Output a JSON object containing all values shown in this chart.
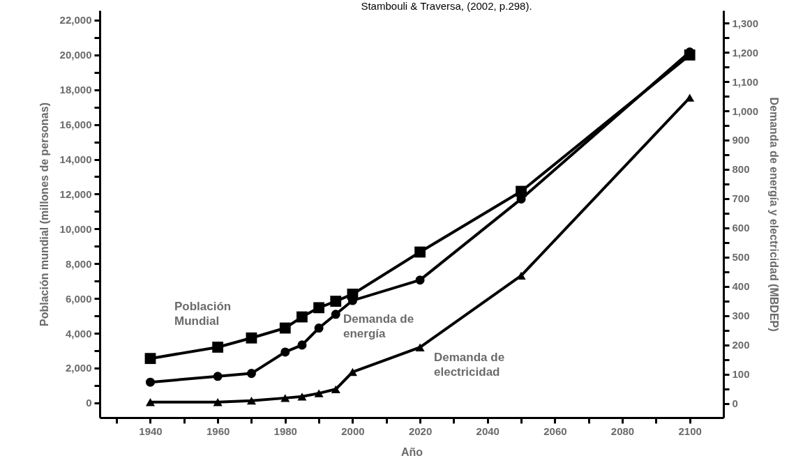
{
  "chart_data": {
    "type": "line",
    "annotations": [
      "Stambouli & Traversa, (2002, p.298)."
    ],
    "xlabel": "Año",
    "ylabel": "Población mundial (millones de personas)",
    "y2label": "Demanda de energía y electricidad (MBDEP)",
    "x": [
      1940,
      1960,
      1970,
      1980,
      1985,
      1990,
      1995,
      2000,
      2020,
      2050,
      2100
    ],
    "xlim": [
      1925,
      2110
    ],
    "ylim": [
      -850,
      22560
    ],
    "y2lim": [
      -48,
      1343
    ],
    "xticks": [
      {
        "value": 1930,
        "label": null
      },
      1940,
      {
        "value": 1950,
        "label": null
      },
      1960,
      {
        "value": 1970,
        "label": null
      },
      1980,
      {
        "value": 1990,
        "label": null
      },
      2000,
      {
        "value": 2010,
        "label": null
      },
      2020,
      {
        "value": 2030,
        "label": null
      },
      2040,
      {
        "value": 2050,
        "label": null
      },
      2060,
      {
        "value": 2070,
        "label": null
      },
      2080,
      {
        "value": 2090,
        "label": null
      },
      2100
    ],
    "yticks": [
      0,
      {
        "value": 1000,
        "label": null
      },
      {
        "value": 2000,
        "label": "2,000"
      },
      {
        "value": 3000,
        "label": null
      },
      {
        "value": 4000,
        "label": "4,000"
      },
      {
        "value": 5000,
        "label": null
      },
      {
        "value": 6000,
        "label": "6,000"
      },
      {
        "value": 7000,
        "label": null
      },
      {
        "value": 8000,
        "label": "8,000"
      },
      {
        "value": 9000,
        "label": null
      },
      {
        "value": 10000,
        "label": "10,000"
      },
      {
        "value": 11000,
        "label": null
      },
      {
        "value": 12000,
        "label": "12,000"
      },
      {
        "value": 13000,
        "label": null
      },
      {
        "value": 14000,
        "label": "14,000"
      },
      {
        "value": 15000,
        "label": null
      },
      {
        "value": 16000,
        "label": "16,000"
      },
      {
        "value": 17000,
        "label": null
      },
      {
        "value": 18000,
        "label": "18,000"
      },
      {
        "value": 19000,
        "label": null
      },
      {
        "value": 20000,
        "label": "20,000"
      },
      {
        "value": 21000,
        "label": null
      },
      {
        "value": 22000,
        "label": "22,000"
      }
    ],
    "y2ticks": [
      0,
      {
        "value": 50,
        "label": null
      },
      100,
      {
        "value": 150,
        "label": null
      },
      200,
      {
        "value": 250,
        "label": null
      },
      300,
      {
        "value": 350,
        "label": null
      },
      400,
      {
        "value": 450,
        "label": null
      },
      500,
      {
        "value": 550,
        "label": null
      },
      600,
      {
        "value": 650,
        "label": null
      },
      700,
      {
        "value": 750,
        "label": null
      },
      800,
      {
        "value": 850,
        "label": null
      },
      900,
      {
        "value": 950,
        "label": null
      },
      {
        "value": 1000,
        "label": "1,000"
      },
      {
        "value": 1050,
        "label": null
      },
      {
        "value": 1100,
        "label": "1,100"
      },
      {
        "value": 1150,
        "label": null
      },
      {
        "value": 1200,
        "label": "1,200"
      },
      {
        "value": 1250,
        "label": null
      },
      {
        "value": 1300,
        "label": "1,300"
      }
    ],
    "grid": false,
    "legend": false,
    "line_style": "solid",
    "series": [
      {
        "name": "Población Mundial",
        "color": "#000000",
        "marker": "square",
        "values": [
          2550,
          3200,
          3730,
          4300,
          4940,
          5470,
          5840,
          6250,
          8670,
          12160,
          20000
        ]
      },
      {
        "name": "Demanda de energía",
        "color": "#000000",
        "marker": "circle",
        "axis": "y2",
        "values": [
          73,
          93,
          103,
          176,
          200,
          258,
          305,
          352,
          422,
          699,
          1201
        ]
      },
      {
        "name": "Demanda de electricidad",
        "color": "#000000",
        "marker": "triangle",
        "axis": "y2",
        "values": [
          5,
          5,
          10,
          19,
          24,
          35,
          49,
          108,
          192,
          437,
          1045
        ]
      }
    ]
  }
}
